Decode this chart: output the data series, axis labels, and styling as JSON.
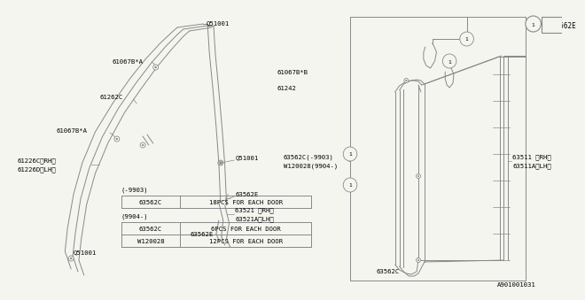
{
  "bg_color": "#f5f5f0",
  "line_color": "#888888",
  "text_color": "#000000",
  "part_number_box": "63562E",
  "footer": "A901001031",
  "fs": 5.2,
  "lw": 0.7
}
